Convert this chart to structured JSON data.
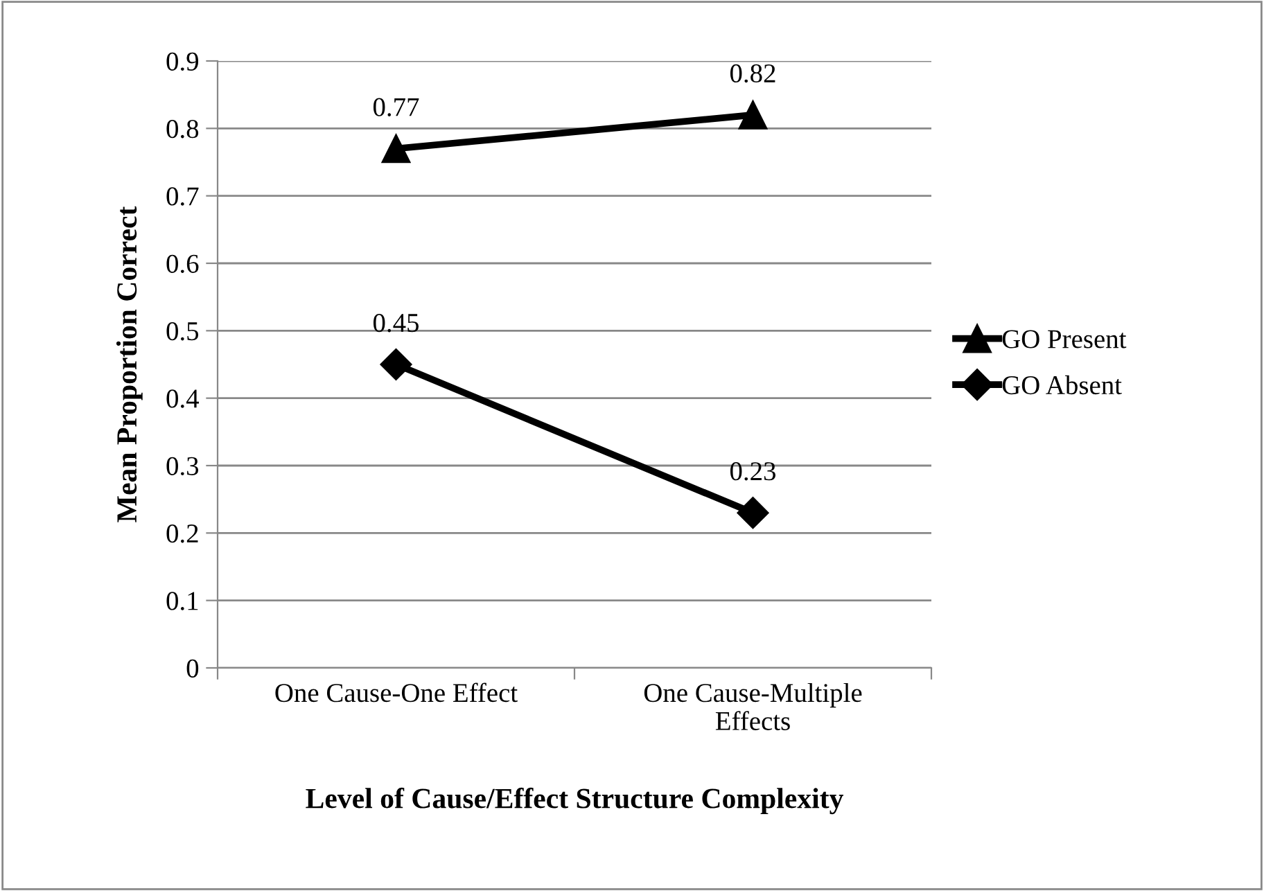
{
  "chart_data": {
    "type": "line",
    "xlabel": "Level of Cause/Effect Structure Complexity",
    "ylabel": "Mean Proportion Correct",
    "categories": [
      "One Cause-One Effect",
      "One Cause-Multiple\nEffects"
    ],
    "series": [
      {
        "name": "GO Present",
        "color": "#000000",
        "values": [
          0.77,
          0.82
        ],
        "marker": "triangle"
      },
      {
        "name": "GO Absent",
        "color": "#000000",
        "values": [
          0.45,
          0.23
        ],
        "marker": "diamond"
      }
    ],
    "ylim": [
      0,
      0.9
    ],
    "yticks": [
      0,
      0.1,
      0.2,
      0.3,
      0.4,
      0.5,
      0.6,
      0.7,
      0.8,
      0.9
    ],
    "grid": "y",
    "legend": "right",
    "data_labels": true,
    "line_style": "solid"
  }
}
